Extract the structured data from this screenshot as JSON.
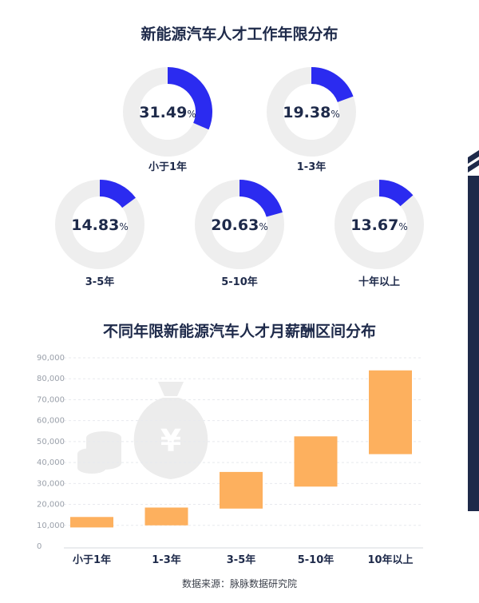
{
  "chart_data": [
    {
      "type": "pie",
      "title": "新能源汽车人才工作年限分布",
      "items": [
        {
          "label": "小于1年",
          "value": 31.49,
          "display": "31.49"
        },
        {
          "label": "1-3年",
          "value": 19.38,
          "display": "19.38"
        },
        {
          "label": "3-5年",
          "value": 14.83,
          "display": "14.83"
        },
        {
          "label": "5-10年",
          "value": 20.63,
          "display": "20.63"
        },
        {
          "label": "十年以上",
          "value": 13.67,
          "display": "13.67"
        }
      ],
      "unit": "%"
    },
    {
      "type": "bar",
      "title": "不同年限新能源汽车人才月薪酬区间分布",
      "categories": [
        "小于1年",
        "1-3年",
        "3-5年",
        "5-10年",
        "10年以上"
      ],
      "ranges": [
        [
          9000,
          14000
        ],
        [
          10000,
          18500
        ],
        [
          18000,
          35500
        ],
        [
          28500,
          52500
        ],
        [
          44000,
          84000
        ]
      ],
      "ylim": [
        0,
        90000
      ],
      "yticks": [
        "0",
        "10,000",
        "20,000",
        "30,000",
        "40,000",
        "50,000",
        "60,000",
        "70,000",
        "80,000",
        "90,000"
      ],
      "grid": true
    }
  ],
  "colors": {
    "donut_fill": "#2b2bf0",
    "donut_track": "#eeeeee",
    "bar": "#fdb05e",
    "text": "#1e2a4a",
    "watermark": "#ededed"
  },
  "icons": [
    "coin-stack-icon",
    "money-bag-icon",
    "stripe-decoration-icon"
  ],
  "source": "数据来源：脉脉数据研究院"
}
